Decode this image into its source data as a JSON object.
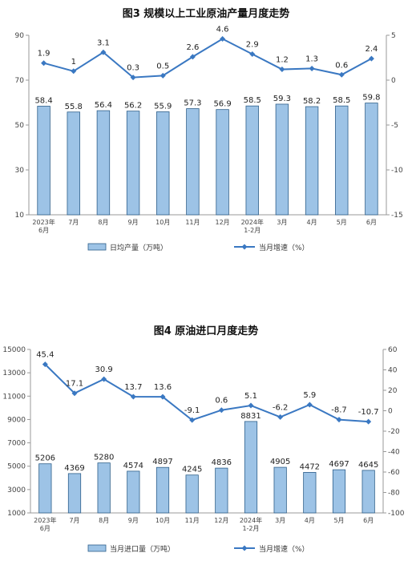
{
  "charts": [
    {
      "title": "图3  规模以上工业原油产量月度走势",
      "chart_data": {
        "type": "bar+line",
        "categories": [
          "2023年\n6月",
          "7月",
          "8月",
          "9月",
          "10月",
          "11月",
          "12月",
          "2024年\n1-2月",
          "3月",
          "4月",
          "5月",
          "6月"
        ],
        "series": [
          {
            "name": "日均产量（万吨）",
            "type": "bar",
            "axis": "left",
            "values": [
              58.4,
              55.8,
              56.4,
              56.2,
              55.9,
              57.3,
              56.9,
              58.5,
              59.3,
              58.2,
              58.5,
              59.8
            ]
          },
          {
            "name": "当月增速（%）",
            "type": "line",
            "axis": "right",
            "values": [
              1.9,
              1.0,
              3.1,
              0.3,
              0.5,
              2.6,
              4.6,
              2.9,
              1.2,
              1.3,
              0.6,
              2.4
            ]
          }
        ],
        "left_axis": {
          "range": [
            10,
            90
          ],
          "ticks": [
            10,
            30,
            50,
            70,
            90
          ]
        },
        "right_axis": {
          "range": [
            -15,
            5
          ],
          "ticks": [
            -15,
            -10,
            -5,
            0,
            5
          ]
        },
        "grid": false,
        "legend_position": "bottom"
      }
    },
    {
      "title": "图4  原油进口月度走势",
      "chart_data": {
        "type": "bar+line",
        "categories": [
          "2023年\n6月",
          "7月",
          "8月",
          "9月",
          "10月",
          "11月",
          "12月",
          "2024年\n1-2月",
          "3月",
          "4月",
          "5月",
          "6月"
        ],
        "series": [
          {
            "name": "当月进口量（万吨）",
            "type": "bar",
            "axis": "left",
            "values": [
              5206,
              4369,
              5280,
              4574,
              4897,
              4245,
              4836,
              8831,
              4905,
              4472,
              4697,
              4645
            ]
          },
          {
            "name": "当月增速（%）",
            "type": "line",
            "axis": "right",
            "values": [
              45.4,
              17.1,
              30.9,
              13.7,
              13.6,
              -9.1,
              0.6,
              5.1,
              -6.2,
              5.9,
              -8.7,
              -10.7
            ]
          }
        ],
        "left_axis": {
          "range": [
            1000,
            15000
          ],
          "ticks": [
            1000,
            3000,
            5000,
            7000,
            9000,
            11000,
            13000,
            15000
          ]
        },
        "right_axis": {
          "range": [
            -100,
            60
          ],
          "ticks": [
            -100,
            -80,
            -60,
            -40,
            -20,
            0,
            20,
            40,
            60
          ]
        },
        "grid": false,
        "legend_position": "bottom"
      }
    }
  ],
  "colors": {
    "bar_fill": "#9dc3e6",
    "bar_stroke": "#2e5f8a",
    "line": "#3a78c2",
    "axis": "#999999"
  }
}
